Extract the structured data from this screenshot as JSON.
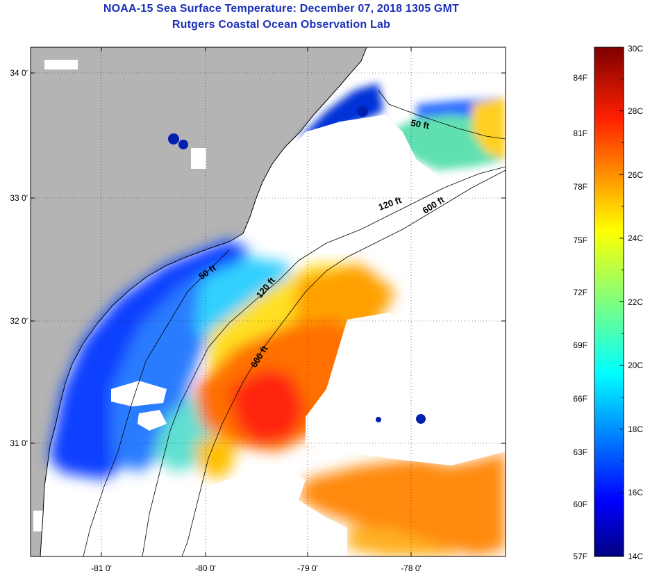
{
  "header": {
    "title": "NOAA-15 Sea Surface Temperature:  December 07, 2018 1305 GMT",
    "subtitle": "Rutgers Coastal Ocean Observation Lab"
  },
  "map": {
    "lat_labels": [
      "34 0'",
      "33 0'",
      "32 0'",
      "31 0'"
    ],
    "lon_labels": [
      "-81 0'",
      "-80 0'",
      "-79 0'",
      "-78 0'"
    ],
    "contour_labels": [
      "50 ft",
      "120 ft",
      "600 ft",
      "50 ft",
      "120 ft",
      "600 ft"
    ],
    "colors": {
      "land": "#b4b4b4",
      "cloud": "#ffffff",
      "coast": "#000000"
    }
  },
  "colorbar": {
    "fahrenheit": [
      "84F",
      "81F",
      "78F",
      "75F",
      "72F",
      "69F",
      "66F",
      "63F",
      "60F",
      "57F"
    ],
    "celsius": [
      "30C",
      "28C",
      "26C",
      "24C",
      "22C",
      "20C",
      "18C",
      "16C",
      "14C"
    ],
    "range_c": [
      14,
      30
    ],
    "colormap": "jet"
  }
}
